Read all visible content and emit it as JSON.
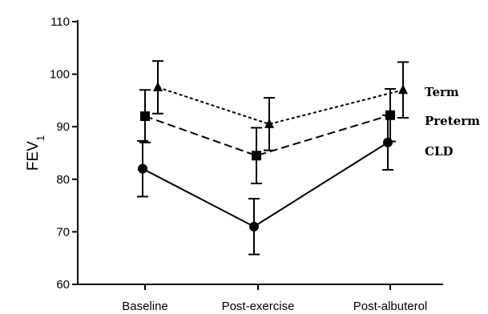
{
  "chart_data": {
    "type": "line",
    "title": "",
    "xlabel": "",
    "ylabel": "FEV",
    "ylabel_subscript": "1",
    "categories": [
      "Baseline",
      "Post-exercise",
      "Post-albuterol"
    ],
    "ylim": [
      60,
      110
    ],
    "yticks": [
      60,
      70,
      80,
      90,
      100,
      110
    ],
    "grid": false,
    "legend_placement": "right, inline at line ends",
    "series": [
      {
        "name": "Term",
        "marker": "triangle",
        "line_style": "dotted",
        "values": [
          97.5,
          90.5,
          97
        ],
        "error": [
          5,
          5,
          5.3
        ]
      },
      {
        "name": "Preterm",
        "marker": "square",
        "line_style": "dashed",
        "values": [
          92,
          84.5,
          92.2
        ],
        "error": [
          5,
          5.3,
          5
        ]
      },
      {
        "name": "CLD",
        "marker": "circle",
        "line_style": "solid",
        "values": [
          82,
          71,
          87
        ],
        "error": [
          5.3,
          5.3,
          5.2
        ]
      }
    ]
  }
}
